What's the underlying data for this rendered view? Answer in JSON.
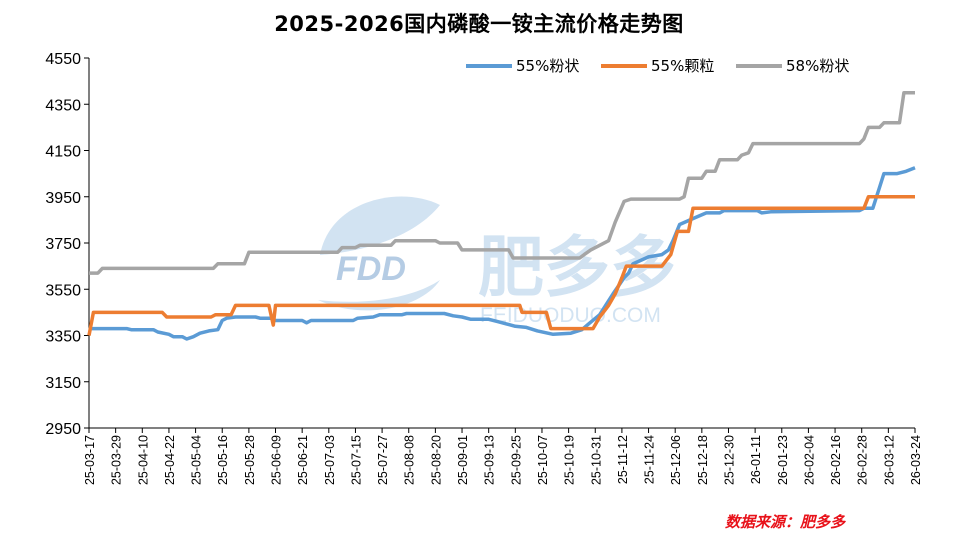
{
  "chart_data": {
    "type": "line",
    "title": "2025-2026国内磷酸一铵主流价格走势图",
    "source": "数据来源：肥多多",
    "watermark": {
      "logo": "FDD",
      "name": "肥多多",
      "url": "FEIDUODUO.COM"
    },
    "ylim": [
      2950,
      4550
    ],
    "yticks": [
      2950,
      3150,
      3350,
      3550,
      3750,
      3950,
      4150,
      4350,
      4550
    ],
    "xlim": [
      "25-03-17",
      "26-03-24"
    ],
    "xticks": [
      "25-03-17",
      "25-03-29",
      "25-04-10",
      "25-04-22",
      "25-05-04",
      "25-05-16",
      "25-05-28",
      "25-06-09",
      "25-06-21",
      "25-07-03",
      "25-07-15",
      "25-07-27",
      "25-08-08",
      "25-08-20",
      "25-09-01",
      "25-09-13",
      "25-09-25",
      "25-10-07",
      "25-10-19",
      "25-10-31",
      "25-11-12",
      "25-11-24",
      "25-12-06",
      "25-12-18",
      "25-12-30",
      "26-01-11",
      "26-01-23",
      "26-02-04",
      "26-02-16",
      "26-02-28",
      "26-03-12",
      "26-03-24"
    ],
    "legend_position": "top-right",
    "series": [
      {
        "name": "55%粉状",
        "color": "#5b9bd5",
        "points": [
          [
            "25-03-17",
            3380
          ],
          [
            "25-04-03",
            3380
          ],
          [
            "25-04-05",
            3375
          ],
          [
            "25-04-15",
            3375
          ],
          [
            "25-04-17",
            3365
          ],
          [
            "25-04-22",
            3355
          ],
          [
            "25-04-24",
            3345
          ],
          [
            "25-04-28",
            3345
          ],
          [
            "25-04-30",
            3335
          ],
          [
            "25-05-03",
            3345
          ],
          [
            "25-05-06",
            3360
          ],
          [
            "25-05-10",
            3370
          ],
          [
            "25-05-14",
            3375
          ],
          [
            "25-05-16",
            3415
          ],
          [
            "25-05-18",
            3425
          ],
          [
            "25-05-22",
            3430
          ],
          [
            "25-05-31",
            3430
          ],
          [
            "25-06-02",
            3425
          ],
          [
            "25-06-07",
            3425
          ],
          [
            "25-06-09",
            3415
          ],
          [
            "25-06-21",
            3415
          ],
          [
            "25-06-23",
            3405
          ],
          [
            "25-06-25",
            3415
          ],
          [
            "25-07-14",
            3415
          ],
          [
            "25-07-16",
            3425
          ],
          [
            "25-07-23",
            3430
          ],
          [
            "25-07-26",
            3440
          ],
          [
            "25-08-05",
            3440
          ],
          [
            "25-08-07",
            3445
          ],
          [
            "25-08-24",
            3445
          ],
          [
            "25-08-28",
            3435
          ],
          [
            "25-09-01",
            3430
          ],
          [
            "25-09-05",
            3420
          ],
          [
            "25-09-13",
            3420
          ],
          [
            "25-09-17",
            3410
          ],
          [
            "25-09-21",
            3400
          ],
          [
            "25-09-25",
            3390
          ],
          [
            "25-09-30",
            3385
          ],
          [
            "25-10-05",
            3370
          ],
          [
            "25-10-12",
            3355
          ],
          [
            "25-10-20",
            3360
          ],
          [
            "25-10-25",
            3375
          ],
          [
            "25-10-28",
            3400
          ],
          [
            "25-11-02",
            3440
          ],
          [
            "25-11-08",
            3530
          ],
          [
            "25-11-13",
            3600
          ],
          [
            "25-11-15",
            3620
          ],
          [
            "25-11-17",
            3660
          ],
          [
            "25-11-24",
            3690
          ],
          [
            "25-11-30",
            3700
          ],
          [
            "25-12-03",
            3720
          ],
          [
            "25-12-05",
            3760
          ],
          [
            "25-12-08",
            3830
          ],
          [
            "25-12-15",
            3860
          ],
          [
            "25-12-20",
            3880
          ],
          [
            "25-12-26",
            3880
          ],
          [
            "25-12-28",
            3890
          ],
          [
            "26-01-12",
            3890
          ],
          [
            "26-01-14",
            3880
          ],
          [
            "26-01-18",
            3885
          ],
          [
            "26-02-27",
            3890
          ],
          [
            "26-03-01",
            3900
          ],
          [
            "26-03-05",
            3900
          ],
          [
            "26-03-08",
            3990
          ],
          [
            "26-03-10",
            4050
          ],
          [
            "26-03-16",
            4050
          ],
          [
            "26-03-20",
            4060
          ],
          [
            "26-03-24",
            4075
          ]
        ]
      },
      {
        "name": "55%颗粒",
        "color": "#ed7d31",
        "points": [
          [
            "25-03-17",
            3350
          ],
          [
            "25-03-19",
            3450
          ],
          [
            "25-04-19",
            3450
          ],
          [
            "25-04-21",
            3430
          ],
          [
            "25-05-11",
            3430
          ],
          [
            "25-05-13",
            3440
          ],
          [
            "25-05-20",
            3440
          ],
          [
            "25-05-22",
            3480
          ],
          [
            "25-06-06",
            3480
          ],
          [
            "25-06-08",
            3395
          ],
          [
            "25-06-09",
            3480
          ],
          [
            "25-09-27",
            3480
          ],
          [
            "25-09-28",
            3450
          ],
          [
            "25-10-09",
            3450
          ],
          [
            "25-10-11",
            3380
          ],
          [
            "25-10-30",
            3380
          ],
          [
            "25-11-02",
            3430
          ],
          [
            "25-11-06",
            3480
          ],
          [
            "25-11-09",
            3530
          ],
          [
            "25-11-12",
            3600
          ],
          [
            "25-11-14",
            3650
          ],
          [
            "25-11-30",
            3650
          ],
          [
            "25-12-04",
            3700
          ],
          [
            "25-12-07",
            3800
          ],
          [
            "25-12-12",
            3800
          ],
          [
            "25-12-14",
            3900
          ],
          [
            "26-03-01",
            3900
          ],
          [
            "26-03-03",
            3950
          ],
          [
            "26-03-24",
            3950
          ]
        ]
      },
      {
        "name": "58%粉状",
        "color": "#a5a5a5",
        "points": [
          [
            "25-03-17",
            3620
          ],
          [
            "25-03-21",
            3620
          ],
          [
            "25-03-23",
            3640
          ],
          [
            "25-05-12",
            3640
          ],
          [
            "25-05-14",
            3660
          ],
          [
            "25-05-26",
            3660
          ],
          [
            "25-05-28",
            3710
          ],
          [
            "25-07-07",
            3710
          ],
          [
            "25-07-09",
            3730
          ],
          [
            "25-07-15",
            3730
          ],
          [
            "25-07-17",
            3740
          ],
          [
            "25-07-31",
            3740
          ],
          [
            "25-08-02",
            3760
          ],
          [
            "25-08-20",
            3760
          ],
          [
            "25-08-22",
            3750
          ],
          [
            "25-08-30",
            3750
          ],
          [
            "25-09-01",
            3720
          ],
          [
            "25-09-22",
            3720
          ],
          [
            "25-09-24",
            3685
          ],
          [
            "25-10-24",
            3685
          ],
          [
            "25-10-26",
            3700
          ],
          [
            "25-10-29",
            3720
          ],
          [
            "25-11-02",
            3740
          ],
          [
            "25-11-06",
            3760
          ],
          [
            "25-11-09",
            3840
          ],
          [
            "25-11-13",
            3930
          ],
          [
            "25-11-16",
            3940
          ],
          [
            "25-12-08",
            3940
          ],
          [
            "25-12-10",
            3950
          ],
          [
            "25-12-12",
            4030
          ],
          [
            "25-12-18",
            4030
          ],
          [
            "25-12-20",
            4060
          ],
          [
            "25-12-24",
            4060
          ],
          [
            "25-12-26",
            4110
          ],
          [
            "26-01-03",
            4110
          ],
          [
            "26-01-05",
            4130
          ],
          [
            "26-01-08",
            4140
          ],
          [
            "26-01-10",
            4180
          ],
          [
            "26-02-27",
            4180
          ],
          [
            "26-03-01",
            4200
          ],
          [
            "26-03-03",
            4250
          ],
          [
            "26-03-08",
            4250
          ],
          [
            "26-03-10",
            4270
          ],
          [
            "26-03-17",
            4270
          ],
          [
            "26-03-19",
            4400
          ],
          [
            "26-03-24",
            4400
          ]
        ]
      }
    ]
  }
}
